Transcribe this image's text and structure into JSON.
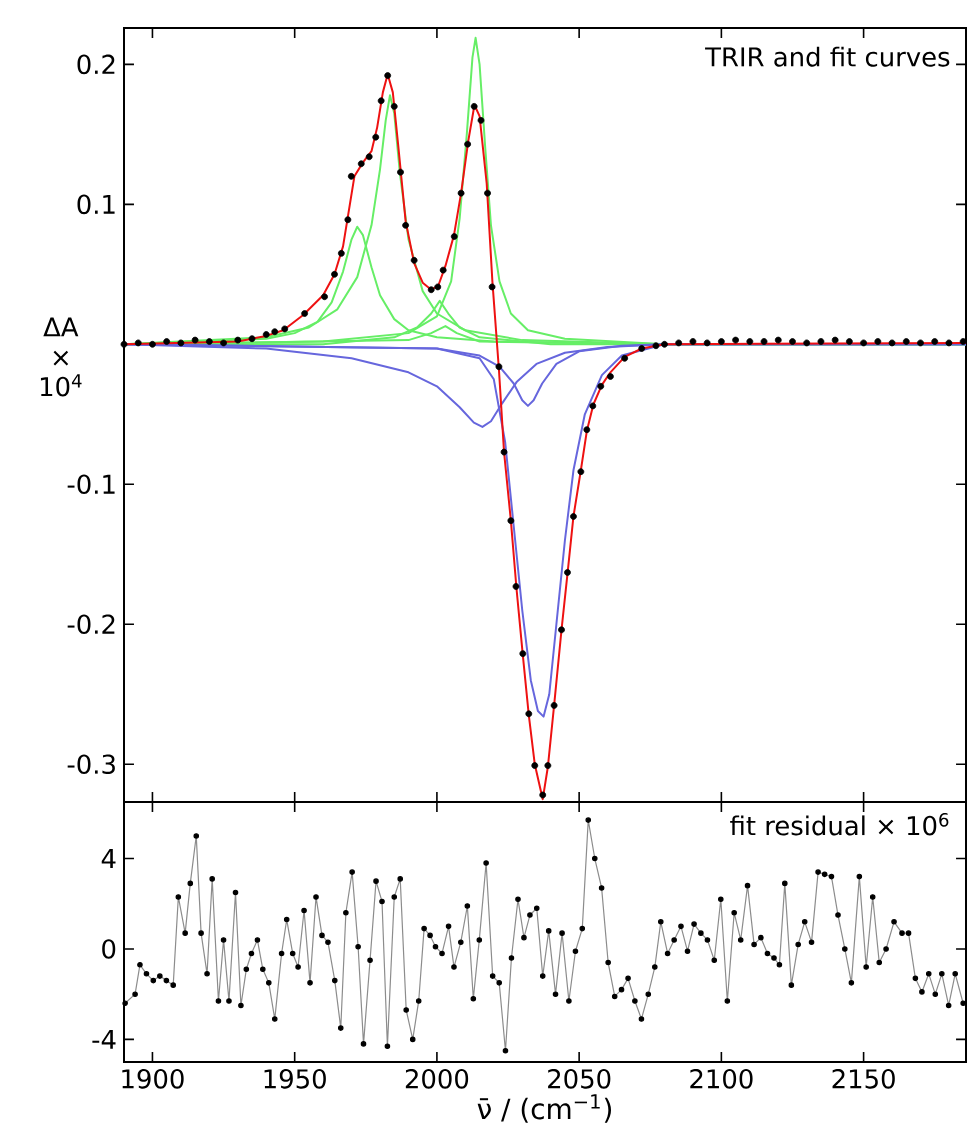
{
  "chart_data": [
    {
      "type": "line",
      "ylabel": "ΔA × 10$^{4}$",
      "annotations": [
        "TRIR and fit curves"
      ],
      "xlim": [
        1890,
        2186
      ],
      "ylim": [
        -0.327,
        0.226
      ],
      "xticks": [
        1900,
        1950,
        2000,
        2050,
        2100,
        2150
      ],
      "yticks": [
        0.2,
        0.1,
        -0.1,
        -0.2,
        -0.3
      ],
      "tick_labels": "y",
      "series": [
        {
          "color": "#66ee66",
          "x": [
            1890,
            1940,
            1950,
            1958,
            1963,
            1967,
            1970,
            1972,
            1974,
            1977,
            1980,
            1985,
            1990,
            2000,
            2020,
            2080,
            2186
          ],
          "values": [
            0,
            0.004,
            0.008,
            0.016,
            0.03,
            0.052,
            0.075,
            0.084,
            0.078,
            0.055,
            0.035,
            0.018,
            0.01,
            0.005,
            0.002,
            0,
            0
          ]
        },
        {
          "color": "#66ee66",
          "x": [
            1890,
            1940,
            1955,
            1965,
            1972,
            1977,
            1980,
            1982,
            1983.5,
            1985,
            1987,
            1990,
            1995,
            2000,
            2010,
            2030,
            2080,
            2186
          ],
          "values": [
            0,
            0.005,
            0.012,
            0.025,
            0.048,
            0.085,
            0.125,
            0.16,
            0.178,
            0.165,
            0.122,
            0.075,
            0.038,
            0.022,
            0.01,
            0.003,
            0,
            0
          ]
        },
        {
          "color": "#66ee66",
          "x": [
            1890,
            1960,
            1990,
            2000,
            2005,
            2008,
            2010.5,
            2012.5,
            2013.6,
            2015,
            2017,
            2019,
            2022,
            2026,
            2032,
            2045,
            2080,
            2186
          ],
          "values": [
            0,
            0.002,
            0.008,
            0.02,
            0.045,
            0.09,
            0.15,
            0.205,
            0.219,
            0.2,
            0.14,
            0.085,
            0.045,
            0.022,
            0.01,
            0.004,
            0,
            0
          ]
        },
        {
          "color": "#66ee66",
          "x": [
            1890,
            1960,
            1985,
            1993,
            1998,
            2001,
            2004,
            2008,
            2015,
            2040,
            2186
          ],
          "values": [
            0,
            0,
            0.005,
            0.012,
            0.022,
            0.031,
            0.022,
            0.012,
            0.005,
            0,
            0
          ]
        },
        {
          "color": "#66ee66",
          "x": [
            1890,
            1990,
            1998,
            2003,
            2007,
            2015,
            2080,
            2186
          ],
          "values": [
            0,
            0.003,
            0.008,
            0.013,
            0.008,
            0.002,
            0,
            0
          ]
        },
        {
          "color": "#6666dd",
          "x": [
            1890,
            1940,
            1970,
            1990,
            2000,
            2008,
            2013,
            2016,
            2019,
            2023,
            2028,
            2035,
            2045,
            2060,
            2080,
            2186
          ],
          "values": [
            0,
            -0.003,
            -0.01,
            -0.02,
            -0.03,
            -0.045,
            -0.056,
            -0.059,
            -0.055,
            -0.042,
            -0.027,
            -0.014,
            -0.006,
            -0.002,
            0,
            0
          ]
        },
        {
          "color": "#6666dd",
          "x": [
            1890,
            2000,
            2015,
            2022,
            2027,
            2030,
            2032,
            2034,
            2037,
            2042,
            2050,
            2065,
            2080,
            2186
          ],
          "values": [
            0,
            -0.003,
            -0.008,
            -0.016,
            -0.028,
            -0.04,
            -0.044,
            -0.04,
            -0.028,
            -0.014,
            -0.005,
            -0.001,
            0,
            0
          ]
        },
        {
          "color": "#6666dd",
          "x": [
            1890,
            2000,
            2015,
            2020,
            2024,
            2027,
            2030,
            2033,
            2035.5,
            2037.5,
            2039.5,
            2042,
            2045,
            2048,
            2052,
            2058,
            2065,
            2080,
            2186
          ],
          "values": [
            0,
            -0.003,
            -0.01,
            -0.025,
            -0.07,
            -0.13,
            -0.19,
            -0.24,
            -0.262,
            -0.266,
            -0.25,
            -0.2,
            -0.14,
            -0.09,
            -0.05,
            -0.022,
            -0.008,
            0,
            0
          ]
        },
        {
          "color": "#ee1111",
          "x": [
            1890,
            1930,
            1940,
            1946,
            1953,
            1960,
            1964,
            1967,
            1969,
            1971,
            1974,
            1977,
            1979,
            1981,
            1982.7,
            1984.5,
            1986.5,
            1989,
            1992,
            1995,
            1998,
            2000.5,
            2003,
            2006,
            2008.5,
            2011,
            2013.2,
            2015,
            2017.5,
            2019.5,
            2021.8,
            2023.6,
            2026,
            2028,
            2030.2,
            2032.3,
            2034.4,
            2037.2,
            2039,
            2041.2,
            2043.8,
            2046,
            2048,
            2050.6,
            2052.7,
            2055,
            2058,
            2061,
            2066,
            2072,
            2080,
            2186
          ],
          "values": [
            0,
            0.002,
            0.006,
            0.01,
            0.021,
            0.035,
            0.05,
            0.07,
            0.095,
            0.12,
            0.13,
            0.138,
            0.155,
            0.18,
            0.193,
            0.18,
            0.14,
            0.088,
            0.058,
            0.044,
            0.039,
            0.042,
            0.056,
            0.078,
            0.108,
            0.145,
            0.171,
            0.163,
            0.115,
            0.045,
            -0.018,
            -0.077,
            -0.126,
            -0.175,
            -0.222,
            -0.265,
            -0.3,
            -0.325,
            -0.302,
            -0.258,
            -0.204,
            -0.162,
            -0.123,
            -0.09,
            -0.062,
            -0.043,
            -0.029,
            -0.02,
            -0.009,
            -0.003,
            0,
            0.001
          ]
        },
        {
          "type": "scatter",
          "marker": "circle",
          "color": "#000000",
          "x": [
            1890,
            1895,
            1900,
            1905,
            1910,
            1915,
            1920,
            1925,
            1930,
            1935,
            1940,
            1943,
            1946.5,
            1953.5,
            1960.5,
            1964,
            1966.4,
            1968.7,
            1969.9,
            1973.4,
            1976.2,
            1978.5,
            1980.4,
            1982.7,
            1985,
            1987.2,
            1989,
            1992,
            1998,
            2000.3,
            2002.2,
            2006.1,
            2008.5,
            2010.8,
            2013.1,
            2015.5,
            2017.8,
            2019.4,
            2021.8,
            2023.6,
            2026,
            2027.8,
            2030.2,
            2032.3,
            2034.4,
            2037.2,
            2039,
            2041.2,
            2043.8,
            2045.9,
            2048,
            2050.6,
            2052.7,
            2054.8,
            2057.6,
            2061,
            2066,
            2072,
            2077,
            2080,
            2085,
            2090,
            2095,
            2100,
            2105,
            2110,
            2115,
            2120,
            2125,
            2130,
            2135,
            2140,
            2145,
            2150,
            2155,
            2160,
            2165,
            2170,
            2175,
            2180,
            2185
          ],
          "values": [
            0,
            0.001,
            0,
            0.002,
            0.001,
            0.003,
            0.002,
            0.001,
            0.003,
            0.004,
            0.007,
            0.009,
            0.011,
            0.022,
            0.034,
            0.05,
            0.065,
            0.089,
            0.12,
            0.129,
            0.134,
            0.148,
            0.174,
            0.192,
            0.17,
            0.123,
            0.085,
            0.06,
            0.039,
            0.041,
            0.053,
            0.077,
            0.108,
            0.143,
            0.17,
            0.16,
            0.108,
            0.041,
            -0.016,
            -0.077,
            -0.126,
            -0.173,
            -0.221,
            -0.264,
            -0.301,
            -0.322,
            -0.301,
            -0.258,
            -0.204,
            -0.163,
            -0.123,
            -0.091,
            -0.061,
            -0.044,
            -0.03,
            -0.023,
            -0.01,
            -0.003,
            -0.001,
            0,
            0.001,
            0.002,
            0.001,
            0.002,
            0.003,
            0.002,
            0.002,
            0.003,
            0.002,
            0.001,
            0.002,
            0.003,
            0.002,
            0.001,
            0.002,
            0.001,
            0.002,
            0.001,
            0.002,
            0.001,
            0.002
          ]
        }
      ]
    },
    {
      "type": "line",
      "marker": "circle",
      "color": "#000000",
      "xlabel": "ν̄ / (cm$^{−1}$)",
      "annotations": [
        "fit residual × 10$^{6}$"
      ],
      "xlim": [
        1890,
        2186
      ],
      "ylim": [
        -5,
        6.5
      ],
      "xticks": [
        1900,
        1950,
        2000,
        2050,
        2100,
        2150
      ],
      "yticks": [
        4,
        0,
        -4
      ],
      "x": [
        1890.4,
        1893.9,
        1895.6,
        1897.9,
        1900.3,
        1902.6,
        1904.9,
        1907.3,
        1909.1,
        1911.5,
        1913.3,
        1915.4,
        1917.1,
        1919.2,
        1921,
        1923.2,
        1925,
        1926.9,
        1929.2,
        1931.1,
        1933,
        1934.8,
        1936.9,
        1938.8,
        1940.9,
        1943,
        1945.4,
        1947.2,
        1949.3,
        1951.2,
        1953.3,
        1955.4,
        1957.5,
        1959.6,
        1961.7,
        1964.1,
        1966.2,
        1968,
        1970.2,
        1972.3,
        1974.2,
        1976.5,
        1978.6,
        1980.7,
        1982.6,
        1985,
        1987.1,
        1989.2,
        1991.5,
        1993.6,
        1995.5,
        1997.6,
        1999.5,
        2001.8,
        2004.1,
        2006,
        2008.4,
        2010.7,
        2012.8,
        2014.9,
        2017.3,
        2019.6,
        2021.9,
        2024.1,
        2026.2,
        2028.5,
        2030.6,
        2032.7,
        2035.1,
        2037.2,
        2039.3,
        2041.7,
        2044,
        2046.4,
        2048.7,
        2051.1,
        2053.2,
        2055.5,
        2057.9,
        2060.2,
        2062.5,
        2064.9,
        2067.2,
        2069.6,
        2071.9,
        2074.3,
        2076.6,
        2078.7,
        2081.1,
        2083.4,
        2085.8,
        2088.1,
        2090.4,
        2092.8,
        2095.1,
        2097.5,
        2099.8,
        2102.1,
        2104.5,
        2106.8,
        2109.2,
        2111.5,
        2113.9,
        2116.2,
        2118.5,
        2120.4,
        2122.3,
        2124.6,
        2127,
        2129.3,
        2131.7,
        2134,
        2136.3,
        2138.7,
        2141,
        2143.4,
        2145.7,
        2148.5,
        2150.9,
        2153.2,
        2155.5,
        2157.9,
        2160.7,
        2163.5,
        2165.8,
        2168.2,
        2170.5,
        2172.9,
        2175.2,
        2177.5,
        2179.9,
        2182.2,
        2185
      ],
      "values": [
        -2.4,
        -2.0,
        -0.7,
        -1.1,
        -1.4,
        -1.2,
        -1.4,
        -1.6,
        2.3,
        0.7,
        2.9,
        5.0,
        0.7,
        -1.1,
        3.1,
        -2.3,
        0.4,
        -2.3,
        2.5,
        -2.5,
        -0.9,
        -0.2,
        0.4,
        -0.9,
        -1.5,
        -3.1,
        -0.2,
        1.3,
        -0.2,
        -0.8,
        1.7,
        -1.5,
        2.3,
        0.6,
        0.3,
        -1.4,
        -3.5,
        1.6,
        3.4,
        0.1,
        -4.2,
        -0.5,
        3.0,
        2.1,
        -4.3,
        2.3,
        3.1,
        -2.7,
        -4.0,
        -2.3,
        0.9,
        0.6,
        0.1,
        -0.2,
        1.0,
        -0.8,
        0.3,
        1.9,
        -2.2,
        0.4,
        3.8,
        -1.2,
        -1.5,
        -4.5,
        -0.4,
        2.2,
        0.5,
        1.5,
        1.8,
        -1.2,
        0.8,
        -2.0,
        0.7,
        -2.3,
        -0.1,
        0.9,
        5.7,
        4.0,
        2.7,
        -0.6,
        -2.1,
        -1.8,
        -1.3,
        -2.3,
        -3.1,
        -2.0,
        -0.8,
        1.2,
        -0.2,
        0.4,
        1.0,
        -0.1,
        1.1,
        0.7,
        0.4,
        -0.5,
        2.2,
        -2.3,
        1.6,
        0.4,
        2.8,
        0.2,
        0.5,
        -0.2,
        -0.4,
        -0.7,
        2.9,
        -1.6,
        0.2,
        1.2,
        0.3,
        3.4,
        3.3,
        3.2,
        1.5,
        0.0,
        -1.5,
        3.2,
        -0.8,
        2.3,
        -0.6,
        0.0,
        1.2,
        0.7,
        0.7,
        -1.3,
        -1.9,
        -1.1,
        -2.0,
        -1.1,
        -2.5,
        -1.1,
        -2.4
      ]
    }
  ]
}
